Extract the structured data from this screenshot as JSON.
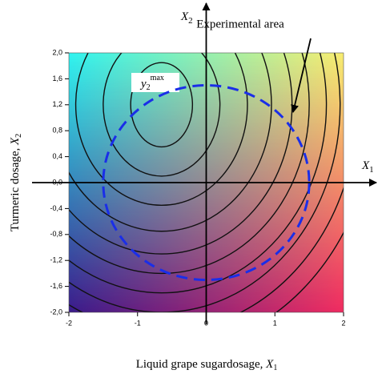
{
  "chart_data": {
    "type": "contour",
    "x_label": {
      "text": "Liquid grape sugardosage, ",
      "var": "X",
      "sub": "1"
    },
    "y_label": {
      "text": "Turmeric dosage, ",
      "var": "X",
      "sub": "2"
    },
    "axis_x_name": {
      "var": "X",
      "sub": "1"
    },
    "axis_y_name": {
      "var": "X",
      "sub": "2"
    },
    "max_label": {
      "var": "y",
      "sub": "2",
      "sup": "max"
    },
    "area_label": "Experimental area",
    "xlim": [
      -2,
      2
    ],
    "ylim": [
      -2,
      2
    ],
    "xticks": [
      -2,
      -1,
      0,
      1,
      2
    ],
    "yticks": [
      {
        "value": 2,
        "label": "2,0"
      },
      {
        "value": 1.6,
        "label": "1,6"
      },
      {
        "value": 1.2,
        "label": "1,2"
      },
      {
        "value": 0.8,
        "label": "0,8"
      },
      {
        "value": 0.4,
        "label": "0,4"
      },
      {
        "value": 0,
        "label": "0,0"
      },
      {
        "value": -0.4,
        "label": "-0,4"
      },
      {
        "value": -0.8,
        "label": "-0,8"
      },
      {
        "value": -1.2,
        "label": "-1,2"
      },
      {
        "value": -1.6,
        "label": "-1,6"
      },
      {
        "value": -2,
        "label": "-2,0"
      }
    ],
    "corner_colors": {
      "top_left": "#30f4f0",
      "top_right": "#f8ee70",
      "bottom_left": "#3a1a8a",
      "bottom_right": "#f02a60"
    },
    "contour_color": "#111111",
    "contours": [
      {
        "cx": -0.65,
        "cy": 1.2,
        "rx": 0.45,
        "ry": 0.65
      },
      {
        "cx": -0.65,
        "cy": 1.2,
        "rx": 0.85,
        "ry": 1.1
      },
      {
        "cx": -0.65,
        "cy": 1.2,
        "rx": 1.25,
        "ry": 1.55
      },
      {
        "cx": -0.65,
        "cy": 1.2,
        "rx": 1.6,
        "ry": 1.95
      },
      {
        "cx": -0.65,
        "cy": 1.2,
        "rx": 1.9,
        "ry": 2.3
      },
      {
        "cx": -0.65,
        "cy": 1.2,
        "rx": 2.15,
        "ry": 2.6
      },
      {
        "cx": -0.65,
        "cy": 1.2,
        "rx": 2.4,
        "ry": 2.9
      },
      {
        "cx": -0.65,
        "cy": 1.2,
        "rx": 2.6,
        "ry": 3.2
      },
      {
        "cx": -0.65,
        "cy": 1.2,
        "rx": 2.85,
        "ry": 3.5
      },
      {
        "cx": -0.65,
        "cy": 1.2,
        "rx": 3.1,
        "ry": 3.8
      }
    ],
    "experimental_area": {
      "cx": 0,
      "cy": 0,
      "r": 1.5,
      "color": "#1a2ee8"
    }
  }
}
